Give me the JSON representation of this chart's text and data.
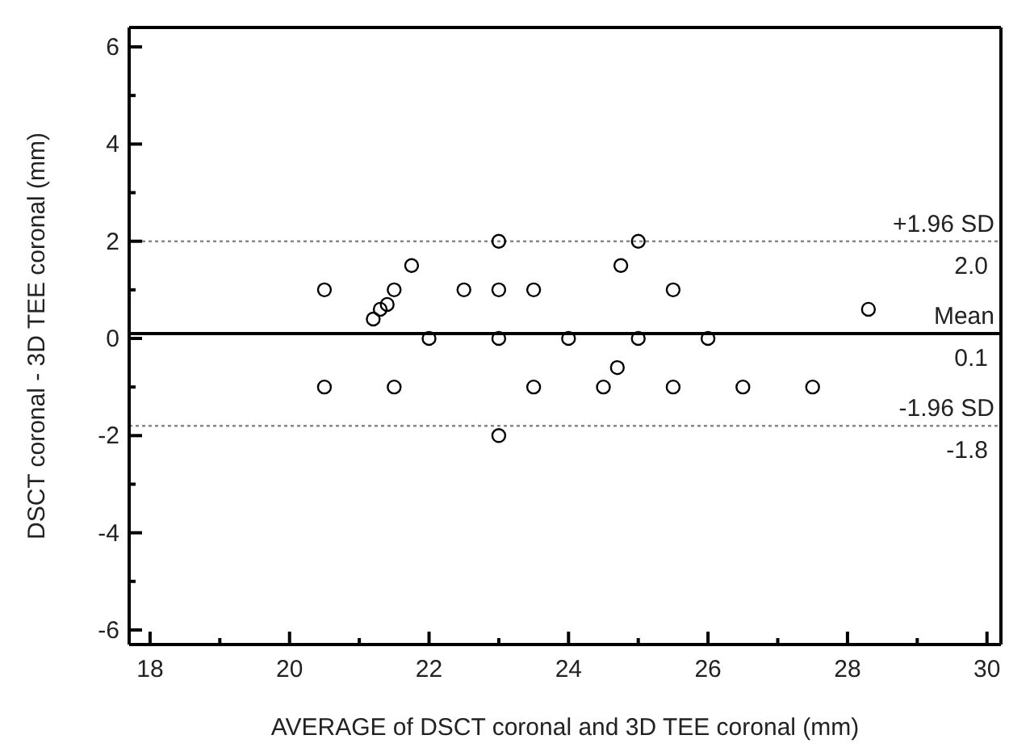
{
  "chart_data": {
    "type": "scatter",
    "xlabel": "AVERAGE of DSCT coronal and 3D TEE coronal (mm)",
    "ylabel": "DSCT coronal - 3D TEE coronal (mm)",
    "x": [
      20.5,
      20.5,
      21.2,
      21.3,
      21.4,
      21.5,
      21.5,
      21.75,
      22,
      22.5,
      23,
      23,
      23,
      23,
      23.5,
      23.5,
      24,
      24.5,
      24.7,
      24.75,
      25,
      25,
      25.5,
      25.5,
      26,
      26.5,
      27.5,
      28.3
    ],
    "values": [
      1,
      -1,
      0.4,
      0.6,
      0.7,
      1,
      -1,
      1.5,
      0,
      1,
      2,
      1,
      0,
      -2,
      1,
      -1,
      0,
      -1,
      -0.6,
      1.5,
      2,
      0,
      1,
      -1,
      0,
      -1,
      -1,
      0.6
    ],
    "color": "#000000",
    "marker": "circle",
    "grid": false,
    "legend": false,
    "xlim": [
      17.7,
      30.2
    ],
    "ylim": [
      -6.3,
      6.4
    ],
    "xticks": [
      18,
      {
        "value": 19,
        "label": null
      },
      20,
      {
        "value": 21,
        "label": null
      },
      22,
      {
        "value": 23,
        "label": null
      },
      24,
      {
        "value": 25,
        "label": null
      },
      26,
      {
        "value": 27,
        "label": null
      },
      28,
      {
        "value": 29,
        "label": null
      },
      30
    ],
    "yticks": [
      -6,
      {
        "value": -5,
        "label": null
      },
      -4,
      {
        "value": -3,
        "label": null
      },
      -2,
      {
        "value": -1,
        "label": null
      },
      0,
      {
        "value": 1,
        "label": null
      },
      2,
      {
        "value": 3,
        "label": null
      },
      4,
      {
        "value": 5,
        "label": null
      },
      6
    ],
    "ref_lines": [
      {
        "axis": "y",
        "value": 2.0,
        "label": "+1.96 SD",
        "color": "#888888",
        "line_style": "dotted"
      },
      {
        "axis": "y",
        "value": 0.1,
        "label": "Mean",
        "color": "#000000",
        "line_style": "solid"
      },
      {
        "axis": "y",
        "value": -1.8,
        "label": "-1.96 SD",
        "color": "#888888",
        "line_style": "dotted"
      }
    ],
    "annotations": [
      {
        "text": "2.0",
        "y": 2.0
      },
      {
        "text": "0.1",
        "y": 0.1
      },
      {
        "text": "-1.8",
        "y": -1.8
      }
    ]
  }
}
